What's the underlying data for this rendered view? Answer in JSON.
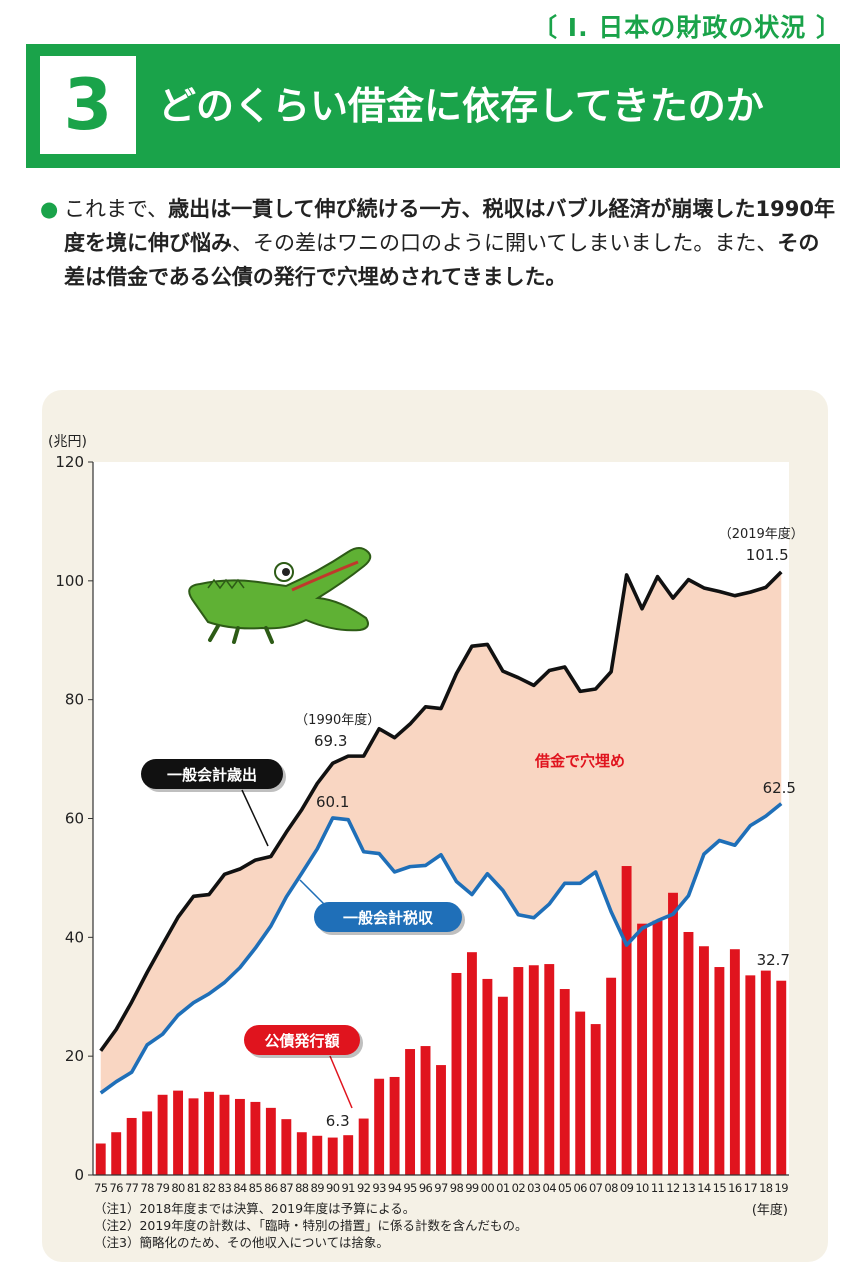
{
  "header": {
    "section_label": "〔 Ⅰ. 日本の財政の状況 〕",
    "number": "3",
    "title": "どのくらい借金に依存してきたのか"
  },
  "intro": {
    "bullet": "●",
    "p1": "これまで、",
    "p2": "歳出は一貫して伸び続ける一方、税収はバブル経済が崩壊した1990年度を境に伸び悩み",
    "p3": "、その差はワニの口のように開いてしまいました。また、",
    "p4": "その差は借金である公債の発行で穴埋めされてきました。"
  },
  "notes": {
    "n1": "（注1）2018年度までは決算、2019年度は予算による。",
    "n2": "（注2）2019年度の計数は、「臨時・特別の措置」に係る計数を含んだもの。",
    "n3": "（注3）簡略化のため、その他収入については捨象。"
  },
  "chart_data": {
    "type": "bar+line",
    "ylabel": "(兆円)",
    "xlabel": "(年度)",
    "ylim": [
      0,
      120
    ],
    "yticks": [
      0,
      20,
      40,
      60,
      80,
      100,
      120
    ],
    "categories": [
      "75",
      "76",
      "77",
      "78",
      "79",
      "80",
      "81",
      "82",
      "83",
      "84",
      "85",
      "86",
      "87",
      "88",
      "89",
      "90",
      "91",
      "92",
      "93",
      "94",
      "95",
      "96",
      "97",
      "98",
      "99",
      "00",
      "01",
      "02",
      "03",
      "04",
      "05",
      "06",
      "07",
      "08",
      "09",
      "10",
      "11",
      "12",
      "13",
      "14",
      "15",
      "16",
      "17",
      "18",
      "19"
    ],
    "series": [
      {
        "name": "一般会計歳出",
        "kind": "line",
        "color": "#111111",
        "values": [
          20.9,
          24.5,
          29.1,
          34.1,
          38.8,
          43.4,
          46.9,
          47.2,
          50.6,
          51.5,
          53.0,
          53.6,
          57.7,
          61.5,
          65.9,
          69.3,
          70.5,
          70.5,
          75.1,
          73.6,
          75.9,
          78.8,
          78.5,
          84.4,
          89.0,
          89.3,
          84.8,
          83.7,
          82.4,
          84.9,
          85.5,
          81.4,
          81.8,
          84.7,
          101.0,
          95.3,
          100.7,
          97.1,
          100.2,
          98.8,
          98.2,
          97.5,
          98.1,
          98.9,
          101.5
        ]
      },
      {
        "name": "一般会計税収",
        "kind": "line",
        "color": "#1f6fb8",
        "values": [
          13.8,
          15.7,
          17.3,
          21.9,
          23.7,
          26.9,
          29.0,
          30.5,
          32.4,
          34.9,
          38.2,
          41.9,
          46.8,
          50.8,
          54.9,
          60.1,
          59.8,
          54.4,
          54.1,
          51.0,
          51.9,
          52.1,
          53.9,
          49.4,
          47.2,
          50.7,
          47.9,
          43.8,
          43.3,
          45.6,
          49.1,
          49.1,
          51.0,
          44.3,
          38.7,
          41.5,
          42.8,
          43.9,
          47.0,
          54.0,
          56.3,
          55.5,
          58.8,
          60.4,
          62.5
        ]
      },
      {
        "name": "公債発行額",
        "kind": "bar",
        "color": "#e0141e",
        "values": [
          5.3,
          7.2,
          9.6,
          10.7,
          13.5,
          14.2,
          12.9,
          14.0,
          13.5,
          12.8,
          12.3,
          11.3,
          9.4,
          7.2,
          6.6,
          6.3,
          6.7,
          9.5,
          16.2,
          16.5,
          21.2,
          21.7,
          18.5,
          34.0,
          37.5,
          33.0,
          30.0,
          35.0,
          35.3,
          35.5,
          31.3,
          27.5,
          25.4,
          33.2,
          52.0,
          42.3,
          42.8,
          47.5,
          40.9,
          38.5,
          35.0,
          38.0,
          33.6,
          34.4,
          32.7
        ]
      }
    ],
    "fill_between": {
      "label": "借金で穴埋め",
      "color": "#f9d6c2"
    },
    "labels": {
      "spend_1990_year": "（1990年度）",
      "spend_1990_value": "69.3",
      "spend_2019_year": "（2019年度）",
      "spend_2019_value": "101.5",
      "tax_1990_value": "60.1",
      "tax_2019_value": "62.5",
      "bond_1990_value": "6.3",
      "bond_2019_value": "32.7",
      "spend_series_label": "一般会計歳出",
      "tax_series_label": "一般会計税収",
      "bond_series_label": "公債発行額",
      "gap_label": "借金で穴埋め"
    }
  }
}
